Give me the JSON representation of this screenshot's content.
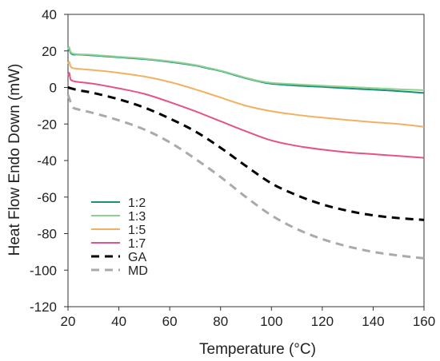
{
  "chart_data": {
    "type": "line",
    "xlabel": "Temperature (°C)",
    "ylabel": "Heat Flow Endo Down (mW)",
    "xlim": [
      20,
      160
    ],
    "ylim": [
      -120,
      40
    ],
    "xticks": [
      "20",
      "40",
      "60",
      "80",
      "100",
      "120",
      "140",
      "160"
    ],
    "yticks": [
      "40",
      "20",
      "0",
      "-20",
      "-40",
      "-60",
      "-80",
      "-100",
      "-120"
    ],
    "grid": false,
    "legend_position": "bottom-left",
    "series": [
      {
        "name": "1:2",
        "color": "#1a8f7a",
        "dash": "solid",
        "x": [
          20,
          20.5,
          21,
          22,
          24,
          30,
          40,
          50,
          60,
          70,
          75,
          80,
          85,
          90,
          95,
          100,
          110,
          120,
          130,
          140,
          150,
          160
        ],
        "y": [
          20,
          21,
          19,
          18,
          18,
          17.5,
          16.5,
          15.5,
          14,
          12,
          10.5,
          9,
          7,
          5,
          3.3,
          2,
          1,
          0.3,
          -0.5,
          -1.2,
          -2,
          -3
        ]
      },
      {
        "name": "1:3",
        "color": "#8fd18f",
        "dash": "solid",
        "x": [
          20,
          20.5,
          21,
          22,
          24,
          30,
          40,
          50,
          60,
          70,
          75,
          80,
          85,
          90,
          95,
          100,
          110,
          120,
          130,
          140,
          150,
          160
        ],
        "y": [
          21,
          22,
          19.5,
          18.5,
          18.2,
          17.8,
          16.8,
          15.8,
          14.3,
          12.3,
          10.8,
          9.2,
          7.3,
          5.3,
          3.6,
          2.5,
          1.7,
          1,
          0.3,
          -0.3,
          -1,
          -1.5
        ]
      },
      {
        "name": "1:5",
        "color": "#f4b060",
        "dash": "solid",
        "x": [
          20,
          20.5,
          21,
          22,
          24,
          30,
          40,
          50,
          60,
          70,
          80,
          90,
          100,
          110,
          120,
          130,
          140,
          150,
          160
        ],
        "y": [
          13,
          14,
          11.5,
          10.5,
          10.2,
          9.5,
          8,
          6,
          3,
          -1,
          -5.5,
          -10,
          -13,
          -15,
          -16.5,
          -17.8,
          -19,
          -20,
          -21.5
        ]
      },
      {
        "name": "1:7",
        "color": "#e65282",
        "dash": "solid",
        "x": [
          20,
          20.5,
          21,
          22,
          24,
          30,
          40,
          50,
          60,
          70,
          80,
          90,
          100,
          110,
          120,
          130,
          140,
          150,
          160
        ],
        "y": [
          6,
          8,
          4.5,
          3.5,
          3,
          2,
          -0.5,
          -3.5,
          -8,
          -13,
          -18.5,
          -24,
          -29,
          -32,
          -34,
          -35.5,
          -36.5,
          -37.5,
          -38.5
        ]
      },
      {
        "name": "GA",
        "color": "#000000",
        "dash": "dashed",
        "x": [
          20,
          24,
          30,
          40,
          50,
          60,
          70,
          80,
          90,
          100,
          110,
          120,
          130,
          140,
          150,
          160
        ],
        "y": [
          0,
          -1.5,
          -3,
          -6.5,
          -11,
          -17,
          -24,
          -33,
          -43,
          -52.5,
          -59,
          -64,
          -67.5,
          -70,
          -71.5,
          -72.5
        ]
      },
      {
        "name": "MD",
        "color": "#aaaaaa",
        "dash": "dashed",
        "x": [
          20,
          21,
          22,
          24,
          30,
          40,
          50,
          60,
          70,
          80,
          90,
          100,
          110,
          120,
          130,
          140,
          150,
          160
        ],
        "y": [
          -4,
          -8,
          -11,
          -12,
          -14,
          -18,
          -23,
          -30,
          -39,
          -49,
          -60,
          -70,
          -77.5,
          -83,
          -87,
          -90,
          -92,
          -93.5
        ]
      }
    ]
  }
}
